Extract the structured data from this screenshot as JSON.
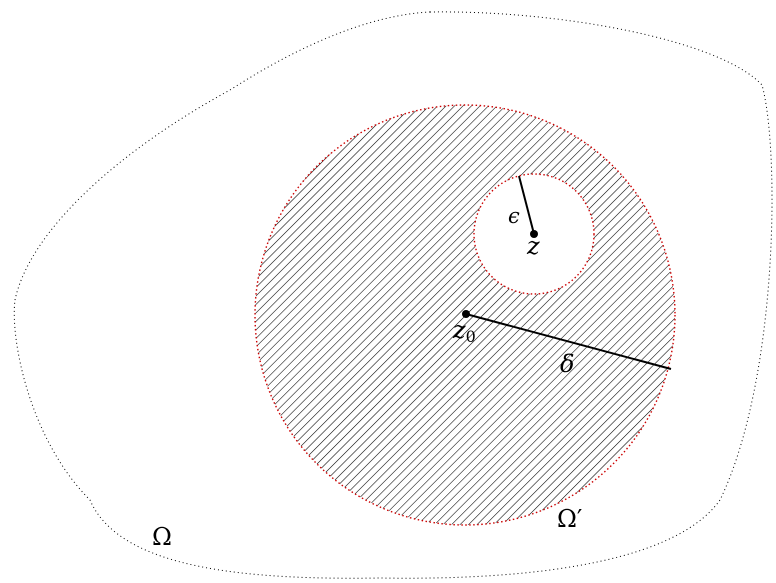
{
  "figure": {
    "labels": {
      "outer_region": "Ω",
      "inner_disc": "Ω′",
      "center_point": "z",
      "center_point_subscript": "0",
      "inner_point": "z",
      "small_radius": "ϵ",
      "large_radius": "δ"
    },
    "colors": {
      "outline_outer": "#000000",
      "outline_disc": "#cc0000",
      "hatch": "#000000",
      "background": "#ffffff"
    }
  }
}
